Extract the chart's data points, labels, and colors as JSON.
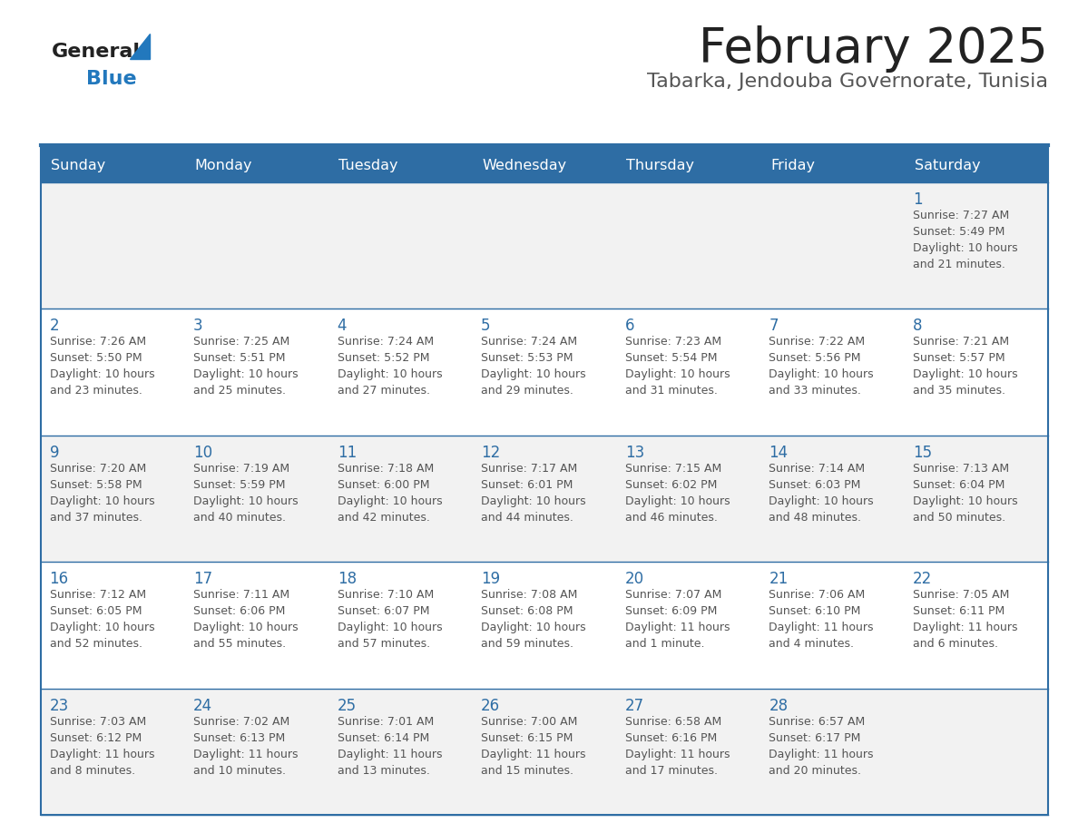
{
  "title": "February 2025",
  "subtitle": "Tabarka, Jendouba Governorate, Tunisia",
  "days_of_week": [
    "Sunday",
    "Monday",
    "Tuesday",
    "Wednesday",
    "Thursday",
    "Friday",
    "Saturday"
  ],
  "header_bg": "#2E6DA4",
  "header_text_color": "#FFFFFF",
  "cell_bg_odd": "#F2F2F2",
  "cell_bg_even": "#FFFFFF",
  "cell_text_color": "#555555",
  "day_num_color": "#2E6DA4",
  "border_color": "#2E6DA4",
  "title_color": "#222222",
  "subtitle_color": "#555555",
  "logo_general_color": "#222222",
  "logo_blue_color": "#2278BD",
  "calendar_data": [
    [
      null,
      null,
      null,
      null,
      null,
      null,
      {
        "day": 1,
        "sunrise": "7:27 AM",
        "sunset": "5:49 PM",
        "daylight": "10 hours and 21 minutes."
      }
    ],
    [
      {
        "day": 2,
        "sunrise": "7:26 AM",
        "sunset": "5:50 PM",
        "daylight": "10 hours and 23 minutes."
      },
      {
        "day": 3,
        "sunrise": "7:25 AM",
        "sunset": "5:51 PM",
        "daylight": "10 hours and 25 minutes."
      },
      {
        "day": 4,
        "sunrise": "7:24 AM",
        "sunset": "5:52 PM",
        "daylight": "10 hours and 27 minutes."
      },
      {
        "day": 5,
        "sunrise": "7:24 AM",
        "sunset": "5:53 PM",
        "daylight": "10 hours and 29 minutes."
      },
      {
        "day": 6,
        "sunrise": "7:23 AM",
        "sunset": "5:54 PM",
        "daylight": "10 hours and 31 minutes."
      },
      {
        "day": 7,
        "sunrise": "7:22 AM",
        "sunset": "5:56 PM",
        "daylight": "10 hours and 33 minutes."
      },
      {
        "day": 8,
        "sunrise": "7:21 AM",
        "sunset": "5:57 PM",
        "daylight": "10 hours and 35 minutes."
      }
    ],
    [
      {
        "day": 9,
        "sunrise": "7:20 AM",
        "sunset": "5:58 PM",
        "daylight": "10 hours and 37 minutes."
      },
      {
        "day": 10,
        "sunrise": "7:19 AM",
        "sunset": "5:59 PM",
        "daylight": "10 hours and 40 minutes."
      },
      {
        "day": 11,
        "sunrise": "7:18 AM",
        "sunset": "6:00 PM",
        "daylight": "10 hours and 42 minutes."
      },
      {
        "day": 12,
        "sunrise": "7:17 AM",
        "sunset": "6:01 PM",
        "daylight": "10 hours and 44 minutes."
      },
      {
        "day": 13,
        "sunrise": "7:15 AM",
        "sunset": "6:02 PM",
        "daylight": "10 hours and 46 minutes."
      },
      {
        "day": 14,
        "sunrise": "7:14 AM",
        "sunset": "6:03 PM",
        "daylight": "10 hours and 48 minutes."
      },
      {
        "day": 15,
        "sunrise": "7:13 AM",
        "sunset": "6:04 PM",
        "daylight": "10 hours and 50 minutes."
      }
    ],
    [
      {
        "day": 16,
        "sunrise": "7:12 AM",
        "sunset": "6:05 PM",
        "daylight": "10 hours and 52 minutes."
      },
      {
        "day": 17,
        "sunrise": "7:11 AM",
        "sunset": "6:06 PM",
        "daylight": "10 hours and 55 minutes."
      },
      {
        "day": 18,
        "sunrise": "7:10 AM",
        "sunset": "6:07 PM",
        "daylight": "10 hours and 57 minutes."
      },
      {
        "day": 19,
        "sunrise": "7:08 AM",
        "sunset": "6:08 PM",
        "daylight": "10 hours and 59 minutes."
      },
      {
        "day": 20,
        "sunrise": "7:07 AM",
        "sunset": "6:09 PM",
        "daylight": "11 hours and 1 minute."
      },
      {
        "day": 21,
        "sunrise": "7:06 AM",
        "sunset": "6:10 PM",
        "daylight": "11 hours and 4 minutes."
      },
      {
        "day": 22,
        "sunrise": "7:05 AM",
        "sunset": "6:11 PM",
        "daylight": "11 hours and 6 minutes."
      }
    ],
    [
      {
        "day": 23,
        "sunrise": "7:03 AM",
        "sunset": "6:12 PM",
        "daylight": "11 hours and 8 minutes."
      },
      {
        "day": 24,
        "sunrise": "7:02 AM",
        "sunset": "6:13 PM",
        "daylight": "11 hours and 10 minutes."
      },
      {
        "day": 25,
        "sunrise": "7:01 AM",
        "sunset": "6:14 PM",
        "daylight": "11 hours and 13 minutes."
      },
      {
        "day": 26,
        "sunrise": "7:00 AM",
        "sunset": "6:15 PM",
        "daylight": "11 hours and 15 minutes."
      },
      {
        "day": 27,
        "sunrise": "6:58 AM",
        "sunset": "6:16 PM",
        "daylight": "11 hours and 17 minutes."
      },
      {
        "day": 28,
        "sunrise": "6:57 AM",
        "sunset": "6:17 PM",
        "daylight": "11 hours and 20 minutes."
      },
      null
    ]
  ]
}
